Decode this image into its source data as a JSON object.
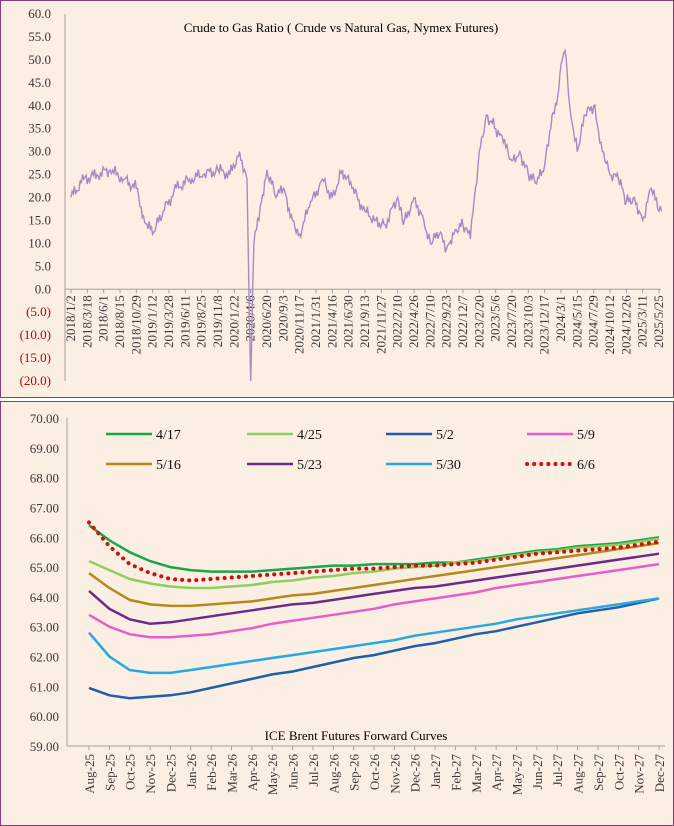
{
  "chart_data": [
    {
      "type": "line",
      "title": "Crude to Gas Ratio ( Crude vs Natural Gas, Nymex Futures)",
      "ylim": [
        -20,
        60
      ],
      "y_ticks": [
        "60.0",
        "55.0",
        "50.0",
        "45.0",
        "40.0",
        "35.0",
        "30.0",
        "25.0",
        "20.0",
        "15.0",
        "10.0",
        "5.0",
        "0.0",
        "(5.0)",
        "(10.0)",
        "(15.0)",
        "(20.0)"
      ],
      "x_tick_labels": [
        "2018/1/2",
        "2018/3/18",
        "2018/6/1",
        "2018/8/15",
        "2018/10/29",
        "2019/1/12",
        "2019/3/28",
        "2019/6/11",
        "2019/8/25",
        "2019/11/8",
        "2020/1/22",
        "2020/4/6",
        "2020/6/20",
        "2020/9/3",
        "2020/11/17",
        "2021/1/31",
        "2021/4/16",
        "2021/6/30",
        "2021/9/13",
        "2021/11/27",
        "2022/2/10",
        "2022/4/26",
        "2022/7/10",
        "2022/9/23",
        "2022/12/7",
        "2023/2/20",
        "2023/5/6",
        "2023/7/20",
        "2023/10/3",
        "2023/12/17",
        "2024/3/1",
        "2024/5/15",
        "2024/7/29",
        "2024/10/12",
        "2024/12/26",
        "2025/3/11",
        "2025/5/25"
      ],
      "grid": false,
      "series": [
        {
          "color": "#a68ac5",
          "x": [
            "2018/1/2",
            "2018/3/1",
            "2018/5/1",
            "2018/7/1",
            "2018/9/1",
            "2018/10/29",
            "2018/12/1",
            "2019/1/12",
            "2019/3/1",
            "2019/5/1",
            "2019/7/1",
            "2019/9/1",
            "2019/11/8",
            "2020/1/1",
            "2020/2/15",
            "2020/3/20",
            "2020/4/6",
            "2020/4/21",
            "2020/5/20",
            "2020/6/20",
            "2020/8/1",
            "2020/9/3",
            "2020/10/15",
            "2020/11/17",
            "2021/1/1",
            "2021/3/1",
            "2021/4/16",
            "2021/6/1",
            "2021/7/15",
            "2021/9/13",
            "2021/11/1",
            "2021/12/15",
            "2022/2/10",
            "2022/3/8",
            "2022/4/26",
            "2022/6/10",
            "2022/7/10",
            "2022/8/20",
            "2022/9/23",
            "2022/11/1",
            "2022/12/7",
            "2023/1/10",
            "2023/2/20",
            "2023/3/25",
            "2023/5/6",
            "2023/6/10",
            "2023/7/20",
            "2023/8/25",
            "2023/10/3",
            "2023/11/10",
            "2023/12/17",
            "2024/1/20",
            "2024/2/15",
            "2024/3/1",
            "2024/3/20",
            "2024/4/10",
            "2024/5/15",
            "2024/6/20",
            "2024/7/29",
            "2024/9/1",
            "2024/10/12",
            "2024/11/20",
            "2024/12/26",
            "2025/2/1",
            "2025/3/11",
            "2025/4/20",
            "2025/5/25",
            "2025/6/6"
          ],
          "values": [
            20,
            24,
            25,
            26,
            24,
            22,
            16,
            12,
            17,
            22,
            24,
            25,
            26,
            25,
            30,
            24,
            -20,
            10,
            18,
            26,
            20,
            22,
            15,
            12,
            18,
            24,
            20,
            26,
            22,
            17,
            15,
            14,
            20,
            14,
            20,
            15,
            10,
            12,
            9,
            13,
            14,
            11,
            30,
            38,
            35,
            32,
            28,
            30,
            25,
            23,
            27,
            38,
            42,
            49,
            52,
            40,
            30,
            38,
            40,
            32,
            25,
            24,
            19,
            20,
            15,
            22,
            17,
            17
          ]
        }
      ]
    },
    {
      "type": "line",
      "title": "ICE Brent Futures Forward Curves",
      "ylim": [
        59,
        70
      ],
      "y_ticks": [
        "70.00",
        "69.00",
        "68.00",
        "67.00",
        "66.00",
        "65.00",
        "64.00",
        "63.00",
        "62.00",
        "61.00",
        "60.00",
        "59.00"
      ],
      "categories": [
        "Aug-25",
        "Sep-25",
        "Oct-25",
        "Nov-25",
        "Dec-25",
        "Jan-26",
        "Feb-26",
        "Mar-26",
        "Apr-26",
        "May-26",
        "Jun-26",
        "Jul-26",
        "Aug-26",
        "Sep-26",
        "Oct-26",
        "Nov-26",
        "Dec-26",
        "Jan-27",
        "Feb-27",
        "Mar-27",
        "Apr-27",
        "May-27",
        "Jun-27",
        "Jul-27",
        "Aug-27",
        "Sep-27",
        "Oct-27",
        "Nov-27",
        "Dec-27"
      ],
      "grid": false,
      "legend": "top",
      "series": [
        {
          "name": "4/17",
          "color": "#1aa64a",
          "values": [
            66.4,
            65.9,
            65.5,
            65.2,
            65.0,
            64.9,
            64.85,
            64.85,
            64.85,
            64.9,
            64.95,
            65.0,
            65.05,
            65.05,
            65.1,
            65.1,
            65.1,
            65.15,
            65.15,
            65.25,
            65.35,
            65.45,
            65.55,
            65.6,
            65.7,
            65.75,
            65.8,
            65.9,
            66.0
          ]
        },
        {
          "name": "4/25",
          "color": "#8fcf5a",
          "values": [
            65.2,
            64.9,
            64.6,
            64.45,
            64.35,
            64.3,
            64.3,
            64.35,
            64.4,
            64.5,
            64.55,
            64.65,
            64.7,
            64.8,
            64.85,
            64.95,
            65.0,
            65.05,
            65.15,
            65.2,
            65.3,
            65.4,
            65.5,
            65.55,
            65.65,
            65.7,
            65.75,
            65.85,
            65.95
          ]
        },
        {
          "name": "5/2",
          "color": "#1f5ea8",
          "values": [
            60.95,
            60.7,
            60.6,
            60.65,
            60.7,
            60.8,
            60.95,
            61.1,
            61.25,
            61.4,
            61.5,
            61.65,
            61.8,
            61.95,
            62.05,
            62.2,
            62.35,
            62.45,
            62.6,
            62.75,
            62.85,
            63.0,
            63.15,
            63.3,
            63.45,
            63.55,
            63.65,
            63.8,
            63.95
          ]
        },
        {
          "name": "5/9",
          "color": "#e85ec8",
          "values": [
            63.4,
            63.0,
            62.75,
            62.65,
            62.65,
            62.7,
            62.75,
            62.85,
            62.95,
            63.1,
            63.2,
            63.3,
            63.4,
            63.5,
            63.6,
            63.75,
            63.85,
            63.95,
            64.05,
            64.15,
            64.3,
            64.4,
            64.5,
            64.6,
            64.7,
            64.8,
            64.9,
            65.0,
            65.1
          ]
        },
        {
          "name": "5/16",
          "color": "#b58a1c",
          "values": [
            64.8,
            64.3,
            63.9,
            63.75,
            63.7,
            63.7,
            63.75,
            63.8,
            63.85,
            63.95,
            64.05,
            64.1,
            64.2,
            64.3,
            64.4,
            64.5,
            64.6,
            64.7,
            64.8,
            64.9,
            65.0,
            65.1,
            65.2,
            65.3,
            65.4,
            65.5,
            65.6,
            65.7,
            65.8
          ]
        },
        {
          "name": "5/23",
          "color": "#6a2c8c",
          "values": [
            64.2,
            63.6,
            63.25,
            63.1,
            63.15,
            63.25,
            63.35,
            63.45,
            63.55,
            63.65,
            63.75,
            63.8,
            63.9,
            64.0,
            64.1,
            64.2,
            64.3,
            64.35,
            64.45,
            64.55,
            64.65,
            64.75,
            64.85,
            64.95,
            65.05,
            65.15,
            65.25,
            65.35,
            65.45
          ]
        },
        {
          "name": "5/30",
          "color": "#26a8e0",
          "values": [
            62.8,
            62.0,
            61.55,
            61.45,
            61.45,
            61.55,
            61.65,
            61.75,
            61.85,
            61.95,
            62.05,
            62.15,
            62.25,
            62.35,
            62.45,
            62.55,
            62.7,
            62.8,
            62.9,
            63.0,
            63.1,
            63.25,
            63.35,
            63.45,
            63.55,
            63.65,
            63.75,
            63.85,
            63.95
          ]
        },
        {
          "name": "6/6",
          "color": "#cc1111",
          "dotted": true,
          "values": [
            66.5,
            65.7,
            65.1,
            64.8,
            64.6,
            64.55,
            64.6,
            64.65,
            64.7,
            64.75,
            64.8,
            64.85,
            64.9,
            64.95,
            64.95,
            65.0,
            65.05,
            65.05,
            65.1,
            65.15,
            65.25,
            65.35,
            65.45,
            65.5,
            65.55,
            65.6,
            65.65,
            65.75,
            65.85
          ]
        }
      ]
    }
  ]
}
